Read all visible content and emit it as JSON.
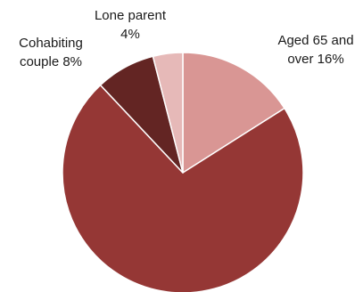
{
  "chart_data": {
    "type": "pie",
    "slices": [
      {
        "label_lines": [
          "Aged 65 and",
          "over 16%"
        ],
        "value": 16,
        "color": "#d99694"
      },
      {
        "label_lines": [],
        "value": 72,
        "color": "#953735"
      },
      {
        "label_lines": [
          "Cohabiting",
          "couple 8%"
        ],
        "value": 8,
        "color": "#632523"
      },
      {
        "label_lines": [
          "Lone parent",
          "4%"
        ],
        "value": 4,
        "color": "#e6b9b8"
      }
    ],
    "start_angle_deg": 0,
    "direction": "clockwise",
    "separator_color": "#ffffff"
  }
}
